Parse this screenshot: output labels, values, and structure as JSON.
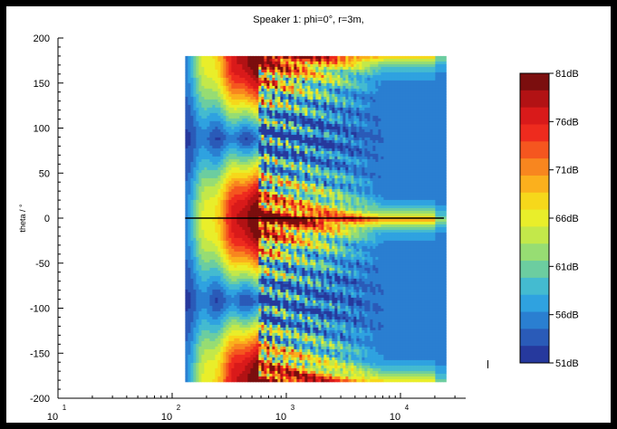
{
  "chart_data": {
    "type": "heatmap",
    "title": "Speaker 1: phi=0°, r=3m,",
    "xlabel": "",
    "ylabel": "theta / °",
    "x_scale": "log",
    "xlim": [
      10,
      100000
    ],
    "ylim": [
      -200,
      200
    ],
    "x_tick_labels": [
      {
        "base": "10",
        "exp": "1"
      },
      {
        "base": "10",
        "exp": "2"
      },
      {
        "base": "10",
        "exp": "3"
      },
      {
        "base": "10",
        "exp": "4"
      }
    ],
    "y_ticks": [
      200,
      150,
      100,
      50,
      0,
      -50,
      -100,
      -150,
      -200
    ],
    "data_extent": {
      "x": [
        130,
        24000
      ],
      "theta": [
        -180,
        180
      ]
    },
    "reference_line": {
      "theta": 0
    },
    "colorbar": {
      "min_db": 51,
      "max_db": 81,
      "tick_labels": [
        "81dB",
        "76dB",
        "71dB",
        "66dB",
        "61dB",
        "56dB",
        "51dB"
      ],
      "colors": [
        "#7b0e0e",
        "#b21214",
        "#d91a1a",
        "#ee2b1e",
        "#f5561f",
        "#f8861f",
        "#fbb01d",
        "#f6d81b",
        "#e9ee2a",
        "#c3e84a",
        "#97dd73",
        "#6ccda0",
        "#44bbd0",
        "#2fa2e0",
        "#2a7fd1",
        "#2a5bb8",
        "#26399d"
      ]
    }
  }
}
